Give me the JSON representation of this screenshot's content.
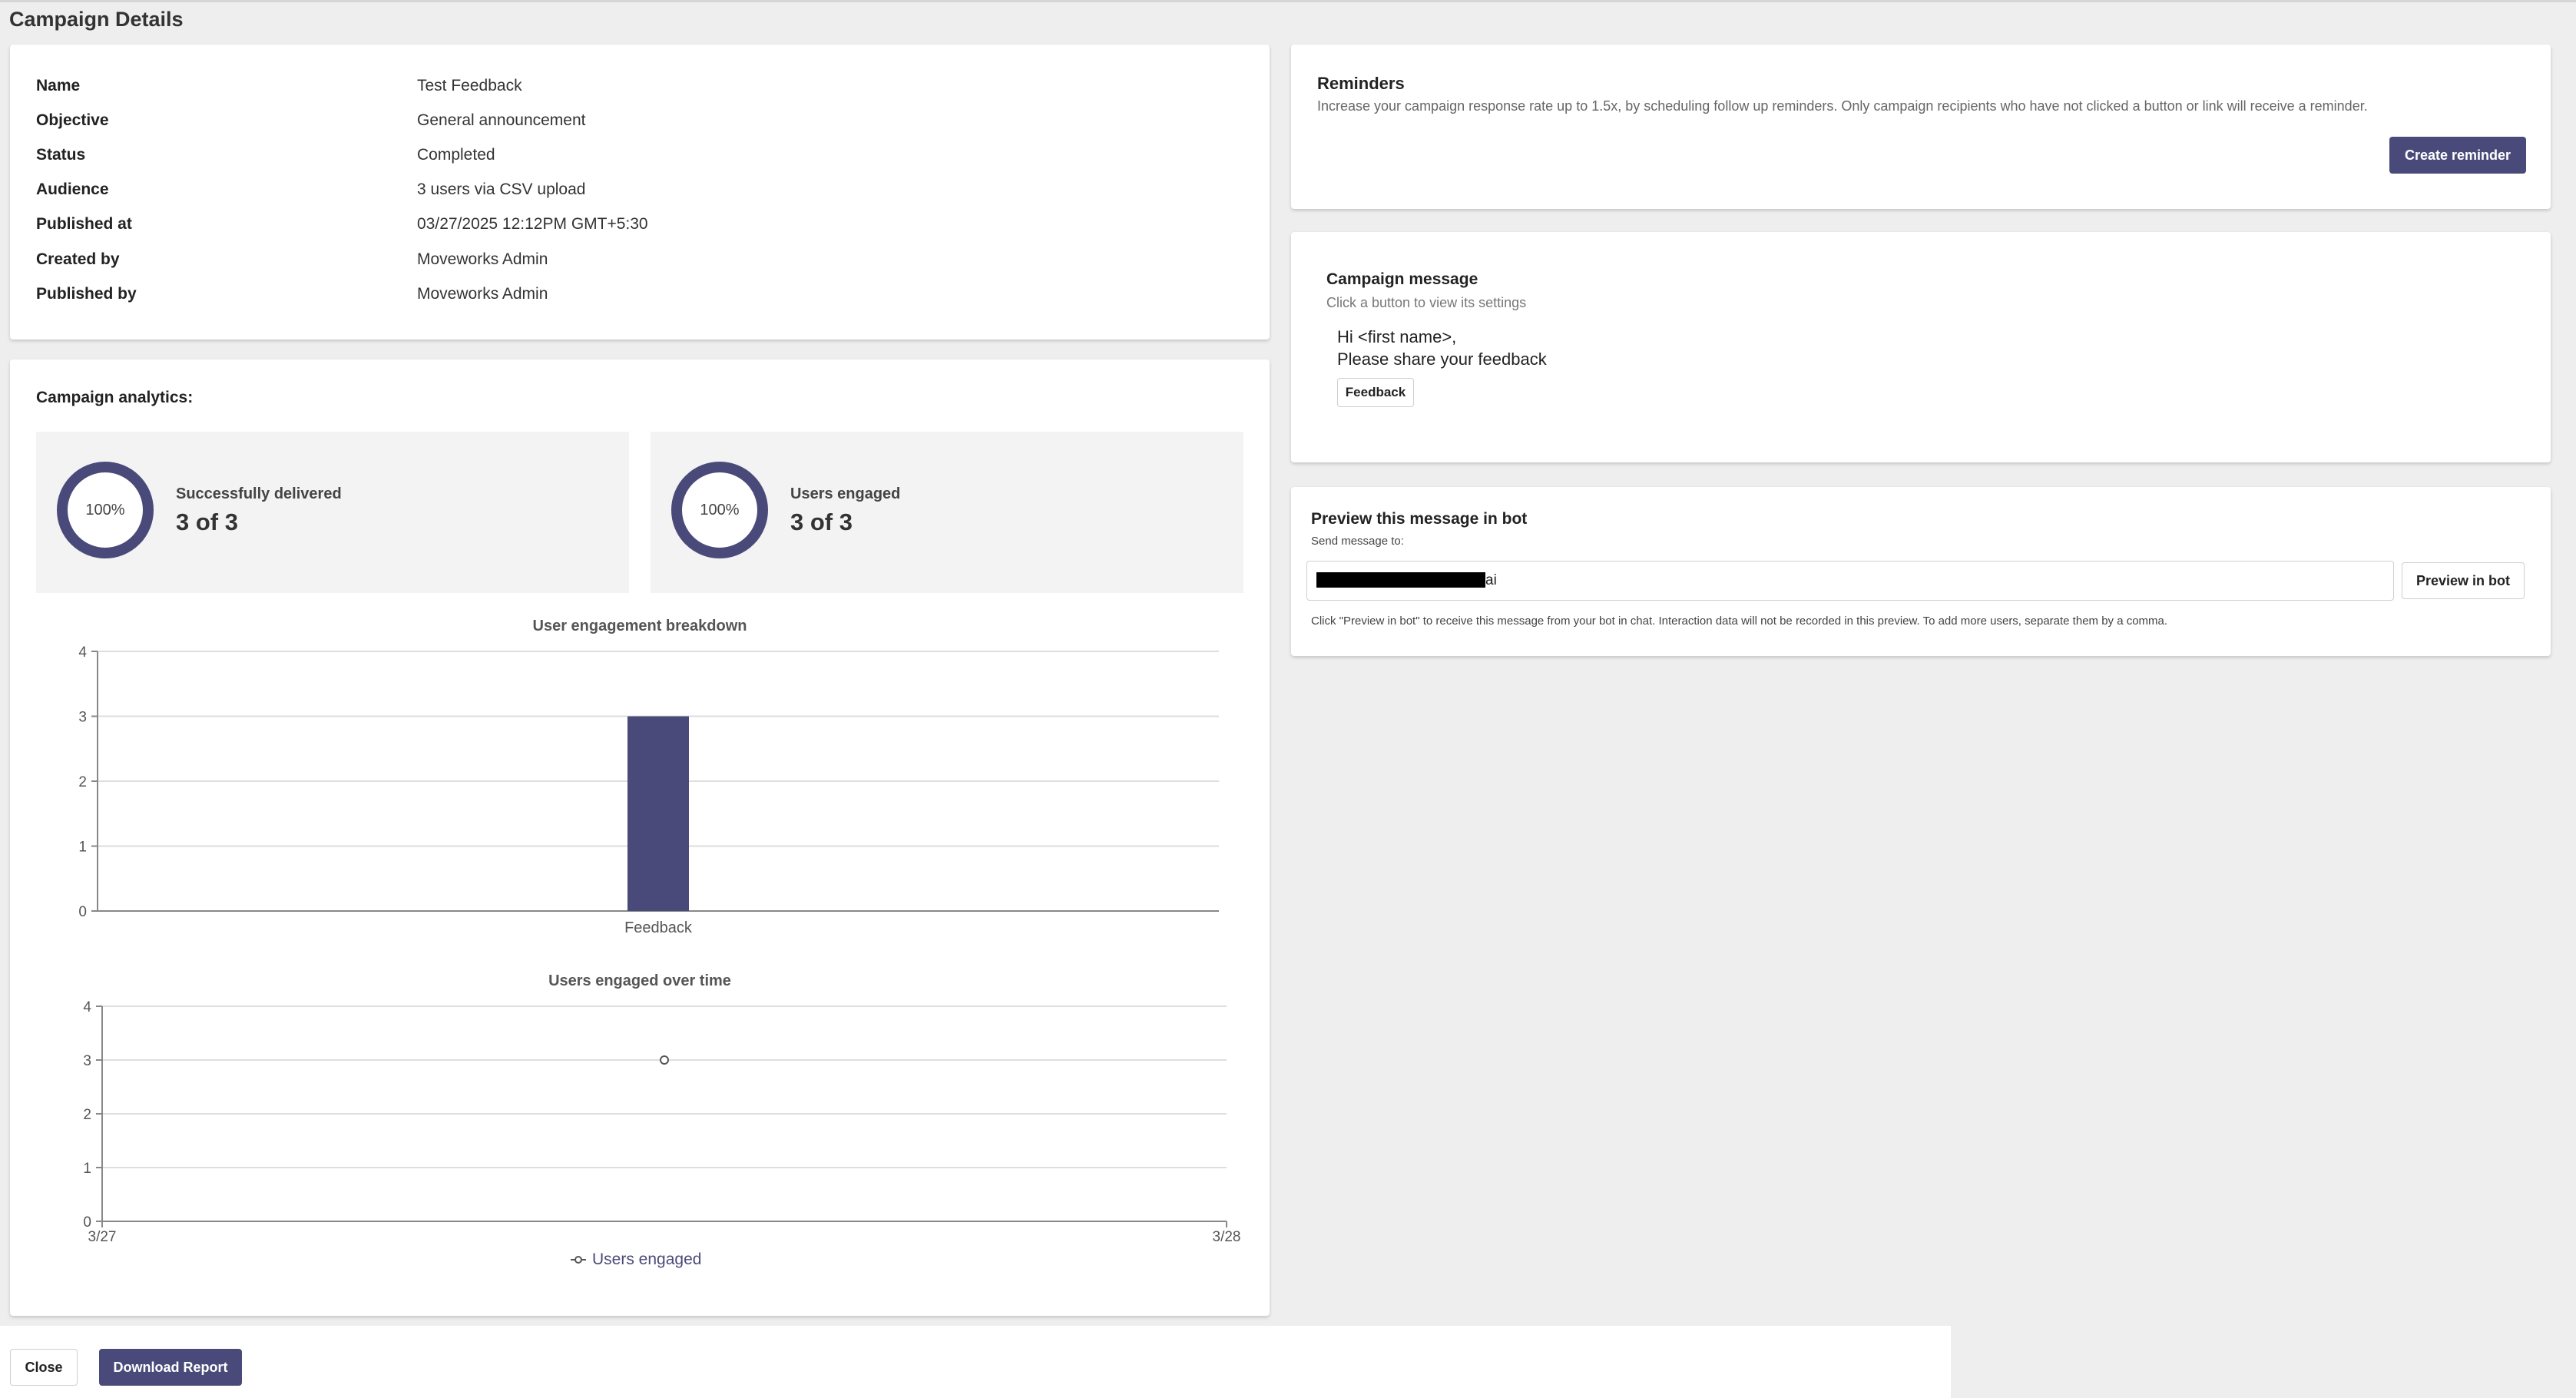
{
  "page": {
    "title": "Campaign Details"
  },
  "details": [
    {
      "label": "Name",
      "value": "Test Feedback"
    },
    {
      "label": "Objective",
      "value": "General announcement"
    },
    {
      "label": "Status",
      "value": "Completed"
    },
    {
      "label": "Audience",
      "value": "3 users via CSV upload"
    },
    {
      "label": "Published at",
      "value": "03/27/2025 12:12PM GMT+5:30"
    },
    {
      "label": "Created by",
      "value": "Moveworks Admin"
    },
    {
      "label": "Published by",
      "value": "Moveworks Admin"
    }
  ],
  "analytics": {
    "title": "Campaign analytics:",
    "stats": [
      {
        "label": "Successfully delivered",
        "value": "3 of 3",
        "percent_text": "100%",
        "percent": 100
      },
      {
        "label": "Users engaged",
        "value": "3 of 3",
        "percent_text": "100%",
        "percent": 100
      }
    ]
  },
  "chart_data": [
    {
      "type": "bar",
      "title": "User engagement breakdown",
      "categories": [
        "Feedback"
      ],
      "values": [
        3
      ],
      "ylim": [
        0,
        4
      ],
      "yticks": [
        "0",
        "1",
        "2",
        "3",
        "4"
      ],
      "color": "#4a4a7a",
      "grid": true
    },
    {
      "type": "line",
      "title": "Users engaged over time",
      "x": [
        "3/27 12:00"
      ],
      "x_ticks": [
        "3/27",
        "3/28"
      ],
      "series": [
        {
          "name": "Users engaged",
          "values": [
            3
          ]
        }
      ],
      "ylim": [
        0,
        4
      ],
      "yticks": [
        "0",
        "1",
        "2",
        "3",
        "4"
      ],
      "legend": "bottom",
      "color": "#4a4a7a",
      "grid": true
    }
  ],
  "reminders": {
    "title": "Reminders",
    "description": "Increase your campaign response rate up to 1.5x, by scheduling follow up reminders. Only campaign recipients who have not clicked a button or link will receive a reminder.",
    "button_label": "Create reminder"
  },
  "message": {
    "title": "Campaign message",
    "subtitle": "Click a button to view its settings",
    "line1": "Hi <first name>,",
    "line2": "Please share your feedback",
    "button_label": "Feedback"
  },
  "preview": {
    "title": "Preview this message in bot",
    "send_label": "Send message to:",
    "input_value": "ai",
    "button_label": "Preview in bot",
    "hint": "Click \"Preview in bot\" to receive this message from your bot in chat. Interaction data will not be recorded in this preview. To add more users, separate them by a comma."
  },
  "footer": {
    "close_label": "Close",
    "download_label": "Download Report"
  },
  "colors": {
    "accent": "#4a4a7a",
    "background": "#eeeeee",
    "panel": "#f3f3f3"
  }
}
